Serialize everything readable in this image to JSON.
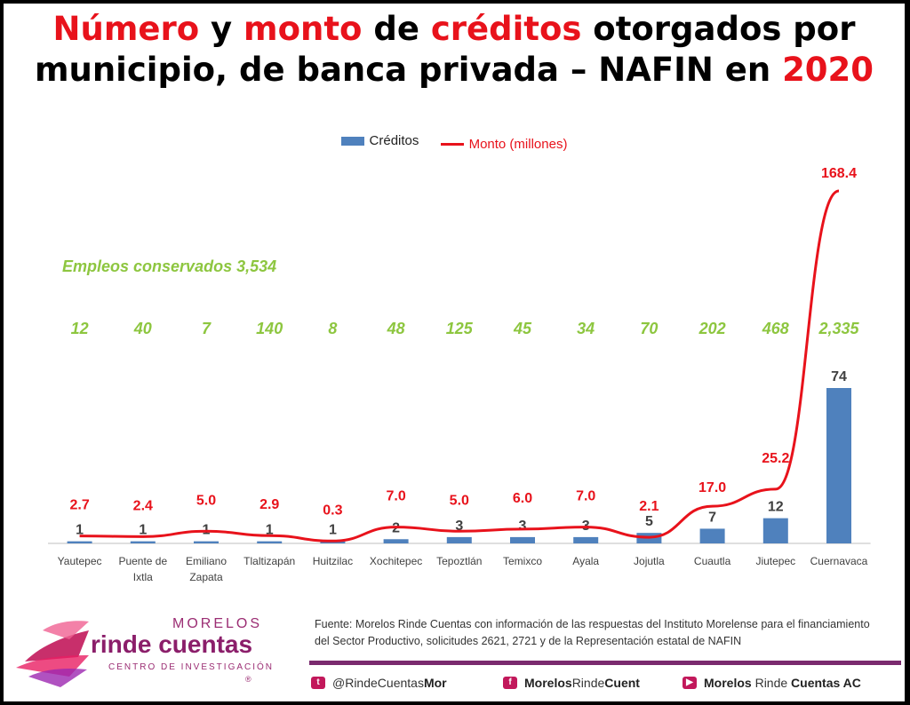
{
  "title": {
    "parts": [
      {
        "text": "Número",
        "color": "red"
      },
      {
        "text": " y ",
        "color": "black"
      },
      {
        "text": "monto",
        "color": "red"
      },
      {
        "text": " de ",
        "color": "black"
      },
      {
        "text": "créditos",
        "color": "red"
      },
      {
        "text": " otorgados por",
        "color": "black"
      },
      {
        "text": "municipio, de banca privada – NAFIN en ",
        "color": "black",
        "break_before": true
      },
      {
        "text": "2020",
        "color": "red"
      }
    ]
  },
  "legend": {
    "bars": "Créditos",
    "line": "Monto (millones)"
  },
  "empleos_label": "Empleos conservados 3,534",
  "chart_data": {
    "type": "bar",
    "categories": [
      "Yautepec",
      "Puente de Ixtla",
      "Emiliano Zapata",
      "Tlaltizapán",
      "Huitzilac",
      "Xochitepec",
      "Tepoztlán",
      "Temixco",
      "Ayala",
      "Jojutla",
      "Cuautla",
      "Jiutepec",
      "Cuernavaca"
    ],
    "series": [
      {
        "name": "Créditos",
        "type": "bar",
        "color": "#4f81bd",
        "values": [
          1,
          1,
          1,
          1,
          1,
          2,
          3,
          3,
          3,
          5,
          7,
          12,
          74
        ],
        "labels": [
          "1",
          "1",
          "1",
          "1",
          "1",
          "2",
          "3",
          "3",
          "3",
          "5",
          "7",
          "12",
          "74"
        ]
      },
      {
        "name": "Monto (millones)",
        "type": "line",
        "color": "#e8121b",
        "values": [
          2.7,
          2.4,
          5.0,
          2.9,
          0.3,
          7.0,
          5.0,
          6.0,
          7.0,
          2.1,
          17.0,
          25.2,
          168.4
        ],
        "labels": [
          "2.7",
          "2.4",
          "5.0",
          "2.9",
          "0.3",
          "7.0",
          "5.0",
          "6.0",
          "7.0",
          "2.1",
          "17.0",
          "25.2",
          "168.4"
        ]
      }
    ],
    "empleos": [
      "12",
      "40",
      "7",
      "140",
      "8",
      "48",
      "125",
      "45",
      "34",
      "70",
      "202",
      "468",
      "2,335"
    ],
    "colors": {
      "bar": "#4f81bd",
      "line": "#e8121b",
      "empleos": "#8dc63f"
    },
    "legend_position": "top",
    "grid": false
  },
  "source": "Fuente: Morelos Rinde Cuentas con información de las respuestas del Instituto Morelense para el financiamiento del Sector Productivo, solicitudes 2621, 2721 y de la Representación estatal de NAFIN",
  "logo": {
    "line1": "MORELOS",
    "line2": "rinde cuentas",
    "line3": "CENTRO DE INVESTIGACIÓN",
    "reg": "®"
  },
  "social": [
    {
      "icon": "twitter-icon",
      "prefix": "@Rinde",
      "mid": "Cuentas",
      "suffix": "Mor"
    },
    {
      "icon": "facebook-icon",
      "prefix": "Morelos",
      "mid": "Rinde",
      "suffix": "Cuent"
    },
    {
      "icon": "youtube-icon",
      "prefix": "Morelos ",
      "mid": "Rinde ",
      "suffix": "Cuentas AC"
    }
  ]
}
